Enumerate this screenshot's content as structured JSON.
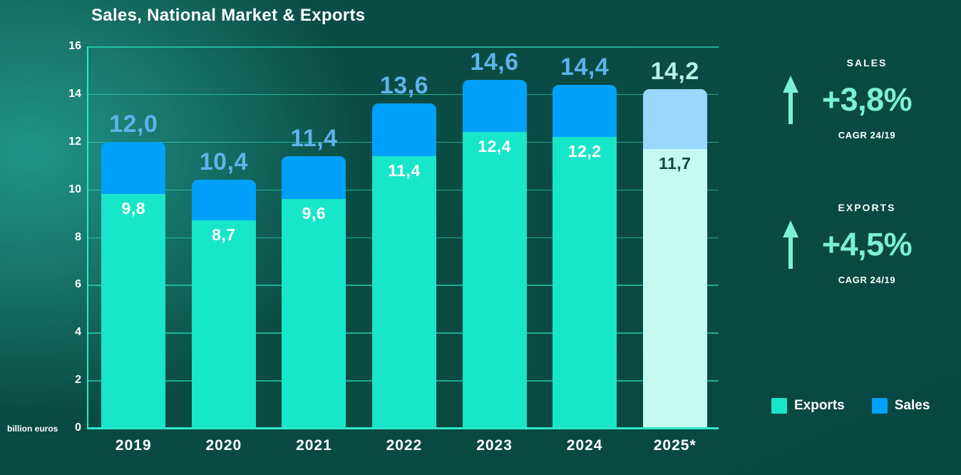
{
  "title": "Sales, National Market & Exports",
  "y_axis": {
    "unit_label": "billion euros",
    "ticks": [
      "16",
      "14",
      "12",
      "10",
      "8",
      "6",
      "4",
      "2",
      "0"
    ]
  },
  "chart_data": {
    "type": "bar",
    "stacked": true,
    "title": "Sales, National Market & Exports",
    "ylabel": "billion euros",
    "ylim": [
      0,
      16
    ],
    "grid": true,
    "legend_position": "bottom-right",
    "categories": [
      "2019",
      "2020",
      "2021",
      "2022",
      "2023",
      "2024",
      "2025*"
    ],
    "series": [
      {
        "name": "Exports",
        "values": [
          9.8,
          8.7,
          9.6,
          11.4,
          12.4,
          12.2,
          11.7
        ]
      },
      {
        "name": "Sales",
        "values": [
          2.2,
          1.7,
          1.8,
          2.2,
          2.2,
          2.2,
          2.5
        ]
      }
    ],
    "totals": [
      12.0,
      10.4,
      11.4,
      13.6,
      14.6,
      14.4,
      14.2
    ],
    "total_labels": [
      "12,0",
      "10,4",
      "11,4",
      "13,6",
      "14,6",
      "14,4",
      "14,2"
    ],
    "exports_labels": [
      "9,8",
      "8,7",
      "9,6",
      "11,4",
      "12,4",
      "12,2",
      "11,7"
    ],
    "forecast_index": 6
  },
  "colors": {
    "exports": "#18e6c8",
    "sales": "#00a1fa",
    "exports_forecast": "#c6faf1",
    "sales_forecast": "#99d7fb",
    "total_label": "#5fb3eb",
    "total_label_forecast": "#b5f2e2",
    "exports_label": "#ffffff",
    "exports_label_forecast": "#0b4a43",
    "accent_mint": "#7df0d3"
  },
  "stats": {
    "sales": {
      "label": "SALES",
      "value": "+3,8%",
      "caption": "CAGR 24/19"
    },
    "exports": {
      "label": "EXPORTS",
      "value": "+4,5%",
      "caption": "CAGR 24/19"
    }
  },
  "legend": [
    {
      "label": "Exports",
      "color": "#18e6c8"
    },
    {
      "label": "Sales",
      "color": "#00a1fa"
    }
  ]
}
